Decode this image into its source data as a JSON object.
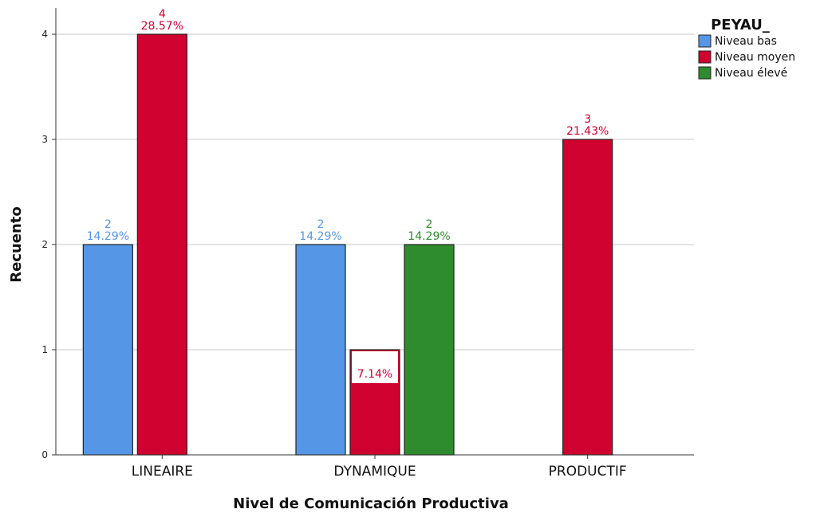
{
  "chart_data": {
    "type": "bar",
    "title": "",
    "xlabel": "Nivel de Comunicación Productiva",
    "ylabel": "Recuento",
    "categories": [
      "LINEAIRE",
      "DYNAMIQUE",
      "PRODUCTIF"
    ],
    "ylim": [
      0,
      4.25
    ],
    "yticks": [
      0,
      1,
      2,
      3,
      4
    ],
    "grid": true,
    "legend": {
      "title": "PEYAU_",
      "placement": "top-right"
    },
    "series": [
      {
        "name": "Niveau bas",
        "color": "#5596e6",
        "values": [
          2,
          2,
          null
        ],
        "pct": [
          "14.29%",
          "14.29%",
          null
        ]
      },
      {
        "name": "Niveau moyen",
        "color": "#d0022f",
        "values": [
          4,
          1,
          3
        ],
        "pct": [
          "28.57%",
          "7.14%",
          "21.43%"
        ]
      },
      {
        "name": "Niveau élevé",
        "color": "#2e8b2e",
        "values": [
          null,
          2,
          null
        ],
        "pct": [
          null,
          "14.29%",
          null
        ]
      }
    ],
    "label_colors": [
      "#5596e6",
      "#d0022f",
      "#2e8b2e"
    ]
  }
}
